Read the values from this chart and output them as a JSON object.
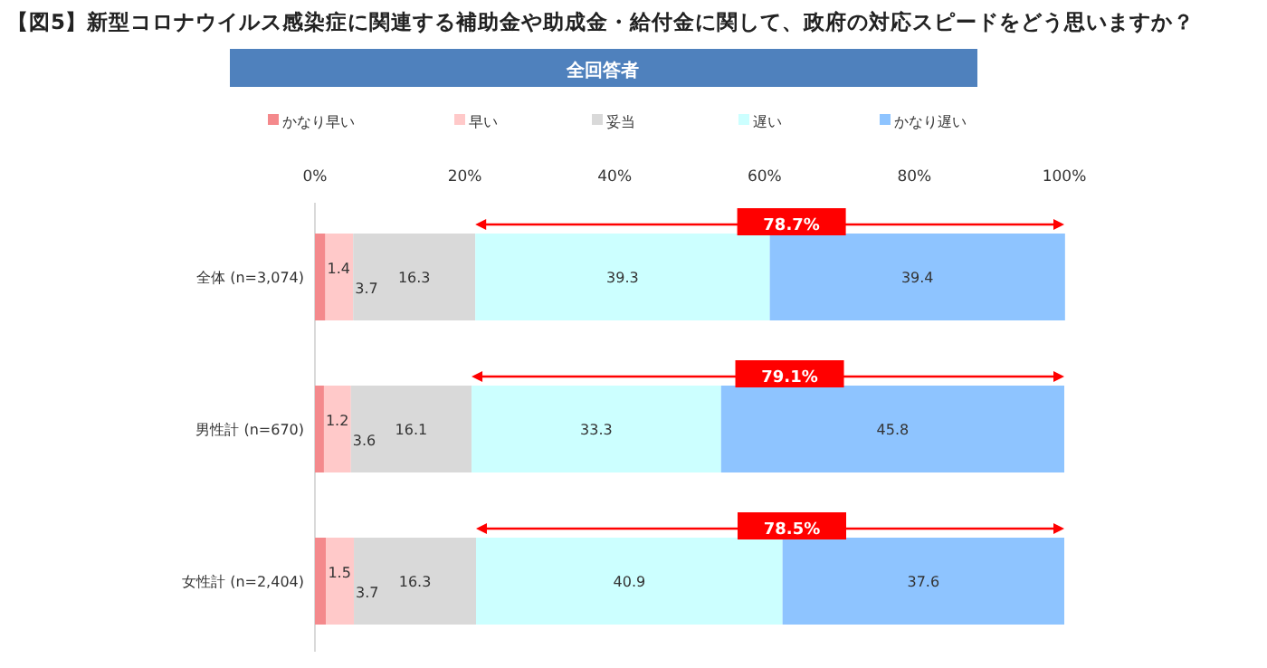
{
  "chart_data": {
    "type": "bar",
    "orientation": "horizontal",
    "stacked": true,
    "title": "【図5】新型コロナウイルス感染症に関連する補助金や助成金・給付金に関して、政府の対応スピードをどう思いますか？",
    "subtitle": "全回答者",
    "categories": [
      "全体 (n=3,074)",
      "男性計 (n=670)",
      "女性計 (n=2,404)"
    ],
    "series": [
      {
        "name": "かなり早い",
        "color": "#f4898c",
        "values": [
          1.4,
          1.2,
          1.5
        ]
      },
      {
        "name": "早い",
        "color": "#ffc9c9",
        "values": [
          3.7,
          3.6,
          3.7
        ]
      },
      {
        "name": "妥当",
        "color": "#d9d9d9",
        "values": [
          16.3,
          16.1,
          16.3
        ]
      },
      {
        "name": "遅い",
        "color": "#ccffff",
        "values": [
          39.3,
          33.3,
          40.9
        ]
      },
      {
        "name": "かなり遅い",
        "color": "#8ec4ff",
        "values": [
          39.4,
          45.8,
          37.6
        ]
      }
    ],
    "xlim": [
      0,
      100
    ],
    "xticks": [
      {
        "value": 0,
        "label": "0%"
      },
      {
        "value": 20,
        "label": "20%"
      },
      {
        "value": 40,
        "label": "40%"
      },
      {
        "value": 60,
        "label": "60%"
      },
      {
        "value": 80,
        "label": "80%"
      },
      {
        "value": 100,
        "label": "100%"
      }
    ],
    "data_labels": true,
    "legend": "top",
    "annotations": [
      "78.7%",
      "79.1%",
      "78.5%"
    ]
  }
}
